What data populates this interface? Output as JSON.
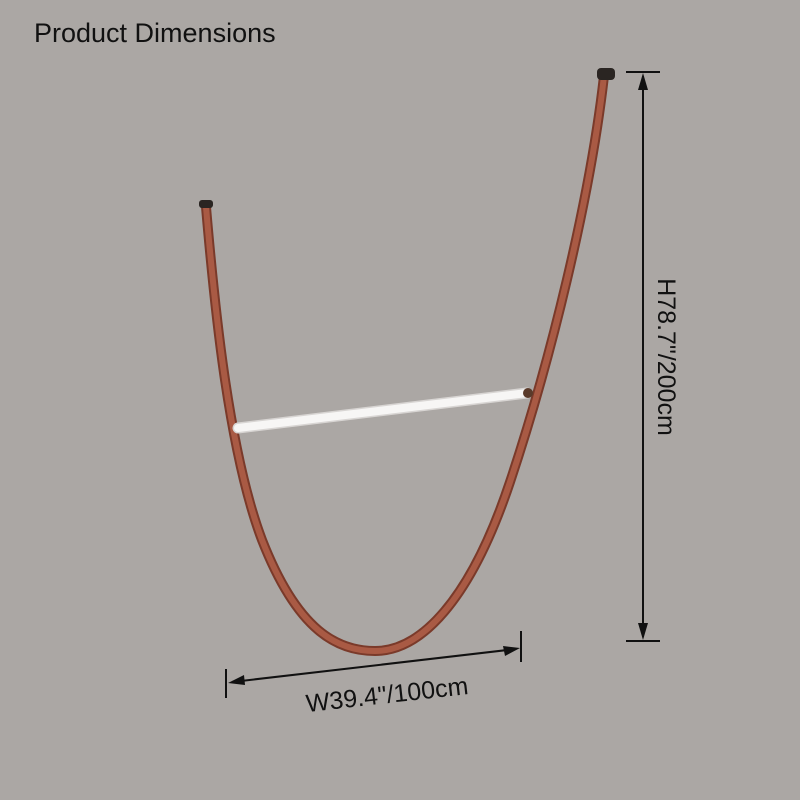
{
  "header": {
    "title": "Product Dimensions"
  },
  "dimensions": {
    "width": "W39.4\"/100cm",
    "height": "H78.7\"/200cm"
  }
}
